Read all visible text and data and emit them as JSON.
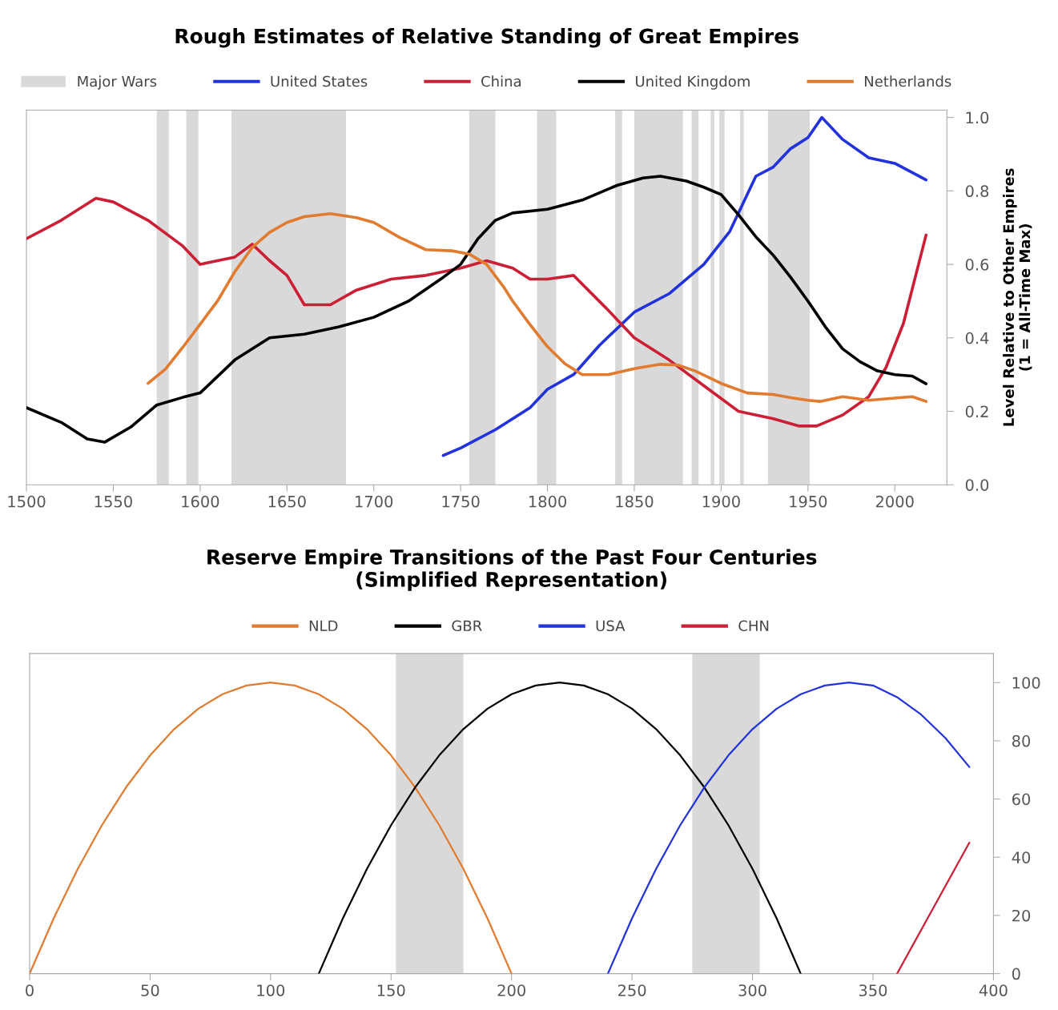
{
  "chart_data": [
    {
      "type": "line",
      "title": "Rough Estimates of Relative Standing of Great Empires",
      "ylabel": "Level Relative to Other Empires\n(1 = All-Time Max)",
      "xlim": [
        1500,
        2030
      ],
      "xticks": [
        1500,
        1550,
        1600,
        1650,
        1700,
        1750,
        1800,
        1850,
        1900,
        1950,
        2000
      ],
      "ylim": [
        0,
        1.02
      ],
      "yticks": [
        {
          "value": 0,
          "label": "0.0"
        },
        {
          "value": 0.2,
          "label": "0.2"
        },
        {
          "value": 0.4,
          "label": "0.4"
        },
        {
          "value": 0.6,
          "label": "0.6"
        },
        {
          "value": 0.8,
          "label": "0.8"
        },
        {
          "value": 1.0,
          "label": "1.0"
        }
      ],
      "legend": "top",
      "grid": false,
      "bands": [
        {
          "axis": "x",
          "from": 1575,
          "to": 1582,
          "label": "Major Wars",
          "color": "#d9d9d9"
        },
        {
          "axis": "x",
          "from": 1592,
          "to": 1599,
          "color": "#d9d9d9"
        },
        {
          "axis": "x",
          "from": 1618,
          "to": 1684,
          "color": "#d9d9d9"
        },
        {
          "axis": "x",
          "from": 1755,
          "to": 1770,
          "color": "#d9d9d9"
        },
        {
          "axis": "x",
          "from": 1794,
          "to": 1805,
          "color": "#d9d9d9"
        },
        {
          "axis": "x",
          "from": 1839,
          "to": 1843,
          "color": "#d9d9d9"
        },
        {
          "axis": "x",
          "from": 1850,
          "to": 1878,
          "color": "#d9d9d9"
        },
        {
          "axis": "x",
          "from": 1883,
          "to": 1887,
          "color": "#d9d9d9"
        },
        {
          "axis": "x",
          "from": 1894,
          "to": 1896,
          "color": "#d9d9d9"
        },
        {
          "axis": "x",
          "from": 1899,
          "to": 1902,
          "color": "#d9d9d9"
        },
        {
          "axis": "x",
          "from": 1911,
          "to": 1913,
          "color": "#d9d9d9"
        },
        {
          "axis": "x",
          "from": 1927,
          "to": 1951,
          "color": "#d9d9d9"
        }
      ],
      "series": [
        {
          "name": "United States",
          "color": "#2233dd",
          "x": [
            1740,
            1750,
            1770,
            1790,
            1800,
            1815,
            1830,
            1850,
            1870,
            1890,
            1905,
            1920,
            1930,
            1940,
            1950,
            1958,
            1970,
            1985,
            2000,
            2010,
            2018
          ],
          "values": [
            0.08,
            0.1,
            0.15,
            0.21,
            0.26,
            0.3,
            0.38,
            0.47,
            0.52,
            0.6,
            0.69,
            0.84,
            0.865,
            0.915,
            0.945,
            1.0,
            0.94,
            0.89,
            0.875,
            0.85,
            0.83
          ]
        },
        {
          "name": "China",
          "color": "#cc1f36",
          "x": [
            1500,
            1520,
            1540,
            1550,
            1570,
            1590,
            1600,
            1620,
            1630,
            1640,
            1650,
            1660,
            1675,
            1690,
            1710,
            1730,
            1750,
            1765,
            1780,
            1790,
            1800,
            1815,
            1834,
            1850,
            1870,
            1890,
            1910,
            1930,
            1945,
            1955,
            1970,
            1985,
            1995,
            2005,
            2018
          ],
          "values": [
            0.67,
            0.72,
            0.78,
            0.77,
            0.72,
            0.65,
            0.6,
            0.62,
            0.655,
            0.61,
            0.57,
            0.49,
            0.49,
            0.53,
            0.56,
            0.57,
            0.59,
            0.61,
            0.59,
            0.56,
            0.56,
            0.57,
            0.48,
            0.4,
            0.34,
            0.27,
            0.2,
            0.18,
            0.16,
            0.16,
            0.19,
            0.24,
            0.32,
            0.44,
            0.68
          ]
        },
        {
          "name": "United Kingdom",
          "color": "#000000",
          "x": [
            1500,
            1520,
            1535,
            1545,
            1560,
            1575,
            1590,
            1600,
            1620,
            1640,
            1660,
            1680,
            1700,
            1720,
            1740,
            1750,
            1760,
            1770,
            1780,
            1800,
            1820,
            1840,
            1855,
            1865,
            1880,
            1890,
            1900,
            1910,
            1920,
            1930,
            1940,
            1950,
            1960,
            1970,
            1980,
            1990,
            2000,
            2010,
            2018
          ],
          "values": [
            0.21,
            0.17,
            0.125,
            0.116,
            0.157,
            0.217,
            0.238,
            0.25,
            0.34,
            0.4,
            0.41,
            0.43,
            0.456,
            0.5,
            0.565,
            0.6,
            0.67,
            0.72,
            0.74,
            0.75,
            0.775,
            0.815,
            0.835,
            0.84,
            0.827,
            0.81,
            0.79,
            0.735,
            0.675,
            0.625,
            0.565,
            0.5,
            0.43,
            0.37,
            0.335,
            0.31,
            0.3,
            0.296,
            0.275
          ]
        },
        {
          "name": "Netherlands",
          "color": "#e07b30",
          "x": [
            1570,
            1580,
            1590,
            1600,
            1610,
            1620,
            1630,
            1640,
            1650,
            1660,
            1675,
            1690,
            1700,
            1715,
            1730,
            1745,
            1755,
            1765,
            1775,
            1780,
            1790,
            1800,
            1810,
            1820,
            1835,
            1850,
            1865,
            1875,
            1885,
            1900,
            1915,
            1930,
            1940,
            1950,
            1957,
            1970,
            1985,
            2000,
            2010,
            2018
          ],
          "values": [
            0.276,
            0.315,
            0.374,
            0.437,
            0.5,
            0.58,
            0.646,
            0.687,
            0.714,
            0.73,
            0.738,
            0.727,
            0.714,
            0.673,
            0.64,
            0.637,
            0.628,
            0.6,
            0.537,
            0.5,
            0.436,
            0.376,
            0.33,
            0.3,
            0.3,
            0.316,
            0.328,
            0.326,
            0.31,
            0.276,
            0.25,
            0.246,
            0.237,
            0.23,
            0.227,
            0.24,
            0.23,
            0.236,
            0.24,
            0.227
          ]
        }
      ]
    },
    {
      "type": "line",
      "title": "Reserve Empire Transitions of the Past Four Centuries\n(Simplified Representation)",
      "xlim": [
        0,
        400
      ],
      "xticks": [
        0,
        50,
        100,
        150,
        200,
        250,
        300,
        350,
        400
      ],
      "ylim": [
        0,
        110
      ],
      "yticks": [
        0,
        20,
        40,
        60,
        80,
        100
      ],
      "legend": "top",
      "grid": false,
      "bands": [
        {
          "axis": "x",
          "from": 152,
          "to": 180,
          "color": "#d9d9d9"
        },
        {
          "axis": "x",
          "from": 275,
          "to": 303,
          "color": "#d9d9d9"
        }
      ],
      "series": [
        {
          "name": "NLD",
          "color": "#e07b30",
          "x": [
            0,
            10,
            20,
            30,
            40,
            50,
            60,
            70,
            80,
            90,
            100,
            110,
            120,
            130,
            140,
            150,
            160,
            170,
            180,
            190,
            200
          ],
          "values": [
            0,
            19,
            36,
            51,
            64,
            75,
            84,
            91,
            96,
            99,
            100,
            99,
            96,
            91,
            84,
            75,
            64,
            51,
            36,
            19,
            0
          ]
        },
        {
          "name": "GBR",
          "color": "#000000",
          "x": [
            120,
            130,
            140,
            150,
            160,
            170,
            180,
            190,
            200,
            210,
            220,
            230,
            240,
            250,
            260,
            270,
            280,
            290,
            300,
            310,
            320
          ],
          "values": [
            0,
            19,
            36,
            51,
            64,
            75,
            84,
            91,
            96,
            99,
            100,
            99,
            96,
            91,
            84,
            75,
            64,
            51,
            36,
            19,
            0
          ]
        },
        {
          "name": "USA",
          "color": "#2233dd",
          "x": [
            240,
            250,
            260,
            270,
            280,
            290,
            300,
            310,
            320,
            330,
            340,
            350,
            360,
            370,
            380,
            390
          ],
          "values": [
            0,
            19,
            36,
            51,
            64,
            75,
            84,
            91,
            96,
            99,
            100,
            99,
            95,
            89,
            81,
            71
          ]
        },
        {
          "name": "CHN",
          "color": "#cc1f36",
          "x": [
            360,
            390
          ],
          "values": [
            0,
            45
          ]
        }
      ]
    }
  ]
}
